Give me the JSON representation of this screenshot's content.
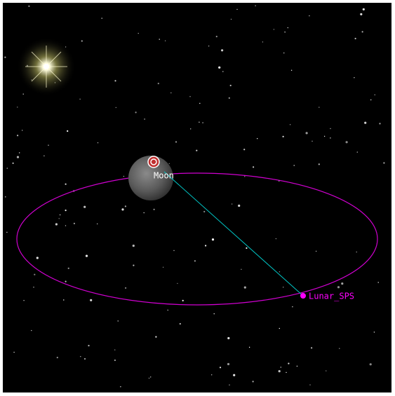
{
  "bodies": [
    {
      "label": "Moon"
    }
  ],
  "vessels": [
    {
      "label": "Lunar_SPS"
    }
  ]
}
